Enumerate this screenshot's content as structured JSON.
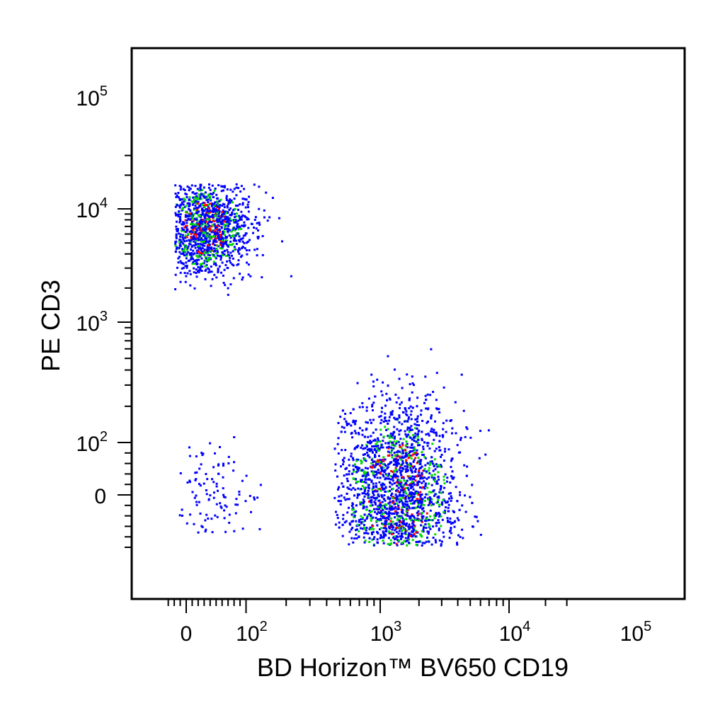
{
  "chart_data": {
    "type": "scatter",
    "style": "flow-cytometry density dot plot",
    "xlabel": "BD Horizon™ BV650   CD19",
    "ylabel": "PE CD3",
    "x_scale": "biexponential",
    "y_scale": "biexponential",
    "xlim": [
      -30,
      300000
    ],
    "ylim": [
      -110,
      300000
    ],
    "grid": false,
    "legend": "none",
    "x_tick_labels": [
      {
        "value": 0,
        "base": "0",
        "exp": ""
      },
      {
        "value": 100,
        "base": "10",
        "exp": "2"
      },
      {
        "value": 1000,
        "base": "10",
        "exp": "3"
      },
      {
        "value": 10000,
        "base": "10",
        "exp": "4"
      },
      {
        "value": 100000,
        "base": "10",
        "exp": "5"
      }
    ],
    "y_tick_labels": [
      {
        "value": 0,
        "base": "0",
        "exp": ""
      },
      {
        "value": 100,
        "base": "10",
        "exp": "2"
      },
      {
        "value": 1000,
        "base": "10",
        "exp": "3"
      },
      {
        "value": 10000,
        "base": "10",
        "exp": "4"
      },
      {
        "value": 100000,
        "base": "10",
        "exp": "5"
      }
    ],
    "density_colors": {
      "low": "#0000ff",
      "medium": "#00dd00",
      "high": "#ff0000"
    },
    "populations": [
      {
        "x_center": 30,
        "y_center": 7000,
        "x_range": [
          -20,
          220
        ],
        "y_range": [
          1300,
          17000
        ],
        "events": 1500,
        "peak_density": "high"
      },
      {
        "x_center": 1350,
        "y_center": 5,
        "x_range": [
          450,
          7000
        ],
        "y_range": [
          -95,
          1500
        ],
        "events": 2600,
        "peak_density": "high"
      },
      {
        "x_center": 40,
        "y_center": 0,
        "x_range": [
          -15,
          200
        ],
        "y_range": [
          -70,
          250
        ],
        "events": 120,
        "peak_density": "low"
      }
    ]
  }
}
